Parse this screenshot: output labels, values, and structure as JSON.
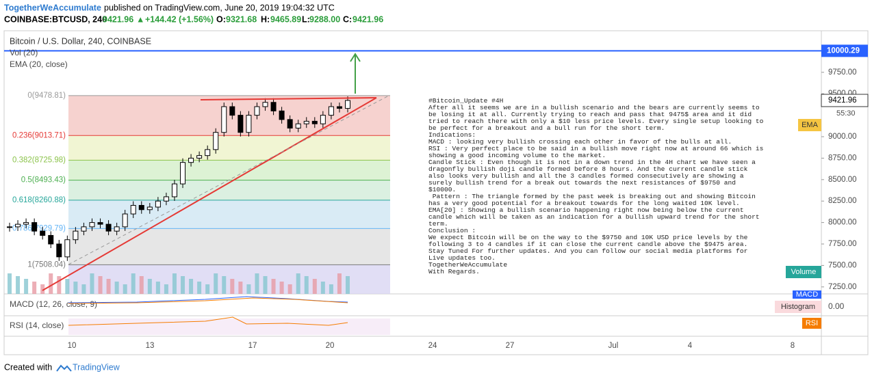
{
  "header": {
    "author": "TogetherWeAccumulate",
    "published": "published on TradingView.com, June 20, 2019 19:04:32 UTC",
    "symbol": "COINBASE:BTCUSD, 240",
    "last": "9421.96",
    "arrow": "▲",
    "change": "+144.42 (+1.56%)",
    "o_label": "O:",
    "o": "9321.68",
    "h_label": "H:",
    "h": "9465.89",
    "l_label": "L:",
    "l": "9288.00",
    "c_label": "C:",
    "c": "9421.96"
  },
  "legend": {
    "title": "Bitcoin / U.S. Dollar, 240, COINBASE",
    "vol": "Vol (20)",
    "ema": "EMA (20, close)",
    "macd": "MACD (12, 26, close, 9)",
    "rsi": "RSI (14, close)"
  },
  "price_axis": {
    "ticks": [
      {
        "value": 9750,
        "label": "9750.00"
      },
      {
        "value": 9500,
        "label": "9500.00"
      },
      {
        "value": 9000,
        "label": "9000.00"
      },
      {
        "value": 8750,
        "label": "8750.00"
      },
      {
        "value": 8500,
        "label": "8500.00"
      },
      {
        "value": 8250,
        "label": "8250.00"
      },
      {
        "value": 8000,
        "label": "8000.00"
      },
      {
        "value": 7750,
        "label": "7750.00"
      },
      {
        "value": 7500,
        "label": "7500.00"
      },
      {
        "value": 7250,
        "label": "7250.00"
      }
    ],
    "target": {
      "value": 10000.29,
      "label": "10000.29"
    },
    "current": {
      "value": 9421.96,
      "label": "9421.96"
    },
    "countdown": "55:30",
    "ema_tag": "EMA",
    "volume_tag": "Volume",
    "macd_tag": "MACD",
    "histogram_tag": "Histogram",
    "macd_zero": "0.00",
    "rsi_tag": "RSI"
  },
  "fib_levels": [
    {
      "label": "0(9478.81)",
      "value": 9478.81
    },
    {
      "label": "0.236(9013.71)",
      "value": 9013.71
    },
    {
      "label": "0.382(8725.98)",
      "value": 8725.98
    },
    {
      "label": "0.5(8493.43)",
      "value": 8493.43
    },
    {
      "label": "0.618(8260.88)",
      "value": 8260.88
    },
    {
      "label": "0.786(7929.79)",
      "value": 7929.79
    },
    {
      "label": "1(7508.04)",
      "value": 7508.04
    }
  ],
  "closes": [
    7950,
    7980,
    8000,
    7900,
    7850,
    7750,
    7600,
    7800,
    7900,
    7950,
    8000,
    7980,
    7900,
    7950,
    8100,
    8200,
    8150,
    8180,
    8250,
    8300,
    8450,
    8700,
    8750,
    8780,
    8850,
    9050,
    9350,
    9250,
    9050,
    9250,
    9350,
    9400,
    9300,
    9200,
    9100,
    9150,
    9180,
    9150,
    9250,
    9350,
    9330,
    9421.96
  ],
  "date_axis": [
    "10",
    "13",
    "17",
    "20",
    "24",
    "27",
    "Jul",
    "4",
    "8"
  ],
  "note": [
    "#Bitcoin_Update #4H",
    "After all it seems we are in a bullish scenario and the bears are currently seems to",
    "be losing it at all. Currently trying to reach and pass that 9475$ area and it did",
    "tried to reach there with only a $10 less price levels. Every single setup looking to",
    "be perfect for a breakout and a bull run for the short term.",
    "Indications:",
    "MACD : looking very bullish crossing each other in favor of the bulls at all.",
    "RSI : Very perfect place to be said in a bullish move right now at around 66 which is",
    "showing a good incoming volume to the market.",
    "Candle Stick : Even though it is not in a down trend in the 4H chart we have seen a",
    "dragonfly bullish doji candle formed before 8 hours. And the current candle stick",
    "also looks very bullish and all the 3 candles formed consecutively are showing a",
    "surely bullish trend for a break out towards the next resistances of $9750 and",
    "$10000.",
    " Pattern : The triangle formed by the past week is breaking out and showing Bitcoin",
    "has a very good potential for a breakout towards for the long waited 10K level.",
    "EMA[20] : Showing a bullish scenario happening right now being below the current",
    "candle which will be taken as an indication for a bullish upward trend for the short",
    "term.",
    "Conclusion :",
    "We expect Bitcoin will be on the way to the $9750 and 10K USD price levels by the",
    "following 3 to 4 candles if it can close the current candle above the $9475 area.",
    "Stay Tuned For further updates. And you can follow our social media platforms for",
    "Live updates too.",
    "TogetherWeAccumulate",
    "With Regards."
  ],
  "footer": {
    "created": "Created with",
    "brand": "TradingView"
  }
}
